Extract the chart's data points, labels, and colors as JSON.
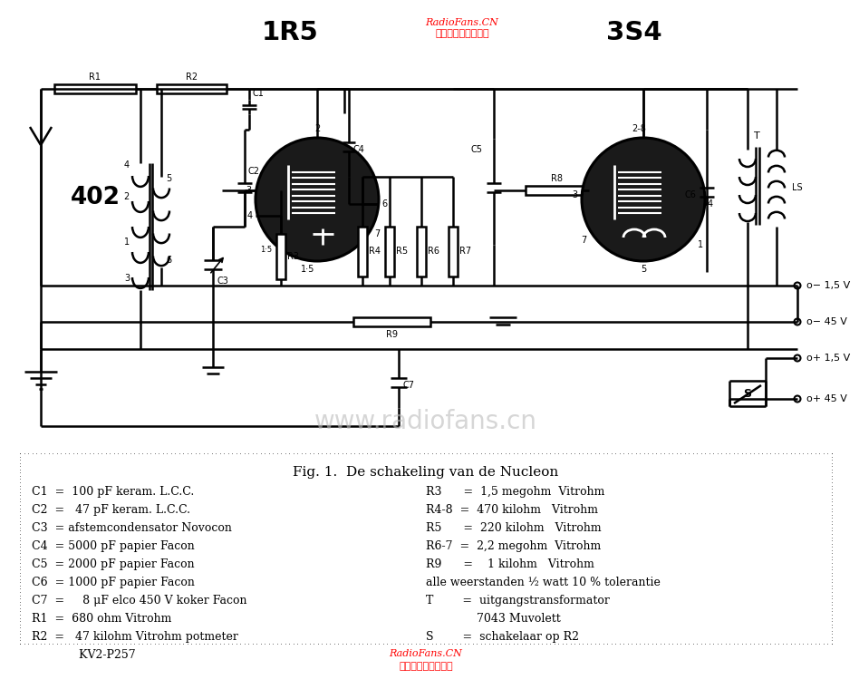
{
  "bg_color": "#ffffff",
  "title_1r5": "1R5",
  "title_3s4": "3S4",
  "watermark_url": "RadioFans.CN",
  "watermark_cn": "收音机爱好者资料库",
  "watermark_large": "www.radiofans.cn",
  "fig_caption": "Fig. 1.  De schakeling van de Nucleon",
  "legend_left": [
    "C1  =  100 pF keram. L.C.C.",
    "C2  =   47 pF keram. L.C.C.",
    "C3  = afstemcondensator Novocon",
    "C4  = 5000 pF papier Facon",
    "C5  = 2000 pF papier Facon",
    "C6  = 1000 pF papier Facon",
    "C7  =     8 μF elco 450 V koker Facon",
    "R1  =  680 ohm Vitrohm",
    "R2  =   47 kilohm Vitrohm potmeter",
    "             KV2-P257"
  ],
  "legend_right": [
    "R3      =  1,5 megohm  Vitrohm",
    "R4-8  =  470 kilohm   Vitrohm",
    "R5      =  220 kilohm   Vitrohm",
    "R6-7  =  2,2 megohm  Vitrohm",
    "R9      =    1 kilohm   Vitrohm",
    "alle weerstanden ½ watt 10 % tolerantie",
    "T        =  uitgangstransformator",
    "              7043 Muvolett",
    "S        =  schakelaar op R2",
    ""
  ],
  "voltage_labels": [
    "− 1,5 V",
    "− 45 V",
    "+ 1,5 V",
    "+ 45 V"
  ]
}
